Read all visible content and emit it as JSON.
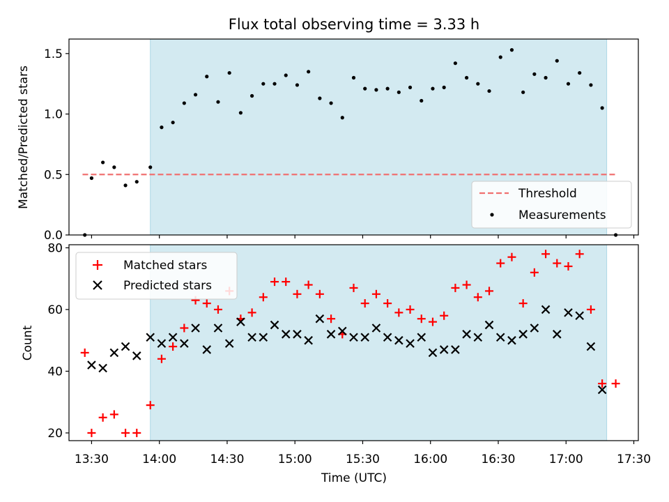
{
  "chart_data": [
    {
      "type": "scatter",
      "title": "Flux total observing time = 3.33 h",
      "xlabel": "",
      "ylabel": "Matched/Predicted stars",
      "ylim": [
        0.0,
        1.62
      ],
      "xlim": [
        "13:20",
        "17:32"
      ],
      "yticks": [
        "0.0",
        "0.5",
        "1.0",
        "1.5"
      ],
      "grid": false,
      "legend_position": "lower right",
      "shaded_interval": {
        "start": "13:56",
        "end": "17:18",
        "color": "#d3eaf1"
      },
      "threshold": {
        "name": "Threshold",
        "value": 0.5,
        "x_start": "13:26",
        "x_end": "17:22",
        "color": "#f07070",
        "style": "dashed"
      },
      "series": [
        {
          "name": "Measurements",
          "color": "#000000",
          "marker": "dot",
          "x": [
            "13:27",
            "13:30",
            "13:35",
            "13:40",
            "13:45",
            "13:50",
            "13:56",
            "14:01",
            "14:06",
            "14:11",
            "14:16",
            "14:21",
            "14:26",
            "14:31",
            "14:36",
            "14:41",
            "14:46",
            "14:51",
            "14:56",
            "15:01",
            "15:06",
            "15:11",
            "15:16",
            "15:21",
            "15:26",
            "15:31",
            "15:36",
            "15:41",
            "15:46",
            "15:51",
            "15:56",
            "16:01",
            "16:06",
            "16:11",
            "16:16",
            "16:21",
            "16:26",
            "16:31",
            "16:36",
            "16:41",
            "16:46",
            "16:51",
            "16:56",
            "17:01",
            "17:06",
            "17:11",
            "17:16",
            "17:22"
          ],
          "y": [
            0.0,
            0.47,
            0.6,
            0.56,
            0.41,
            0.44,
            0.56,
            0.89,
            0.93,
            1.09,
            1.16,
            1.31,
            1.1,
            1.34,
            1.01,
            1.15,
            1.25,
            1.25,
            1.32,
            1.24,
            1.35,
            1.13,
            1.09,
            0.97,
            1.3,
            1.21,
            1.2,
            1.21,
            1.18,
            1.22,
            1.11,
            1.21,
            1.22,
            1.42,
            1.3,
            1.25,
            1.19,
            1.47,
            1.53,
            1.18,
            1.33,
            1.3,
            1.44,
            1.25,
            1.34,
            1.24,
            1.05,
            0.0
          ]
        }
      ]
    },
    {
      "type": "scatter",
      "title": "",
      "xlabel": "Time (UTC)",
      "ylabel": "Count",
      "ylim": [
        17.5,
        81
      ],
      "xlim": [
        "13:20",
        "17:32"
      ],
      "yticks": [
        "20",
        "40",
        "60",
        "80"
      ],
      "xticks": [
        "13:30",
        "14:00",
        "14:30",
        "15:00",
        "15:30",
        "16:00",
        "16:30",
        "17:00",
        "17:30"
      ],
      "grid": false,
      "legend_position": "upper left",
      "shaded_interval": {
        "start": "13:56",
        "end": "17:18",
        "color": "#d3eaf1"
      },
      "series": [
        {
          "name": "Matched stars",
          "color": "#ff0000",
          "marker": "plus",
          "x": [
            "13:27",
            "13:30",
            "13:35",
            "13:40",
            "13:45",
            "13:50",
            "13:56",
            "14:01",
            "14:06",
            "14:11",
            "14:16",
            "14:21",
            "14:26",
            "14:31",
            "14:36",
            "14:41",
            "14:46",
            "14:51",
            "14:56",
            "15:01",
            "15:06",
            "15:11",
            "15:16",
            "15:21",
            "15:26",
            "15:31",
            "15:36",
            "15:41",
            "15:46",
            "15:51",
            "15:56",
            "16:01",
            "16:06",
            "16:11",
            "16:16",
            "16:21",
            "16:26",
            "16:31",
            "16:36",
            "16:41",
            "16:46",
            "16:51",
            "16:56",
            "17:01",
            "17:06",
            "17:11",
            "17:16",
            "17:22"
          ],
          "y": [
            46,
            20,
            25,
            26,
            20,
            20,
            29,
            44,
            48,
            54,
            63,
            62,
            60,
            66,
            57,
            59,
            64,
            69,
            69,
            65,
            68,
            65,
            57,
            52,
            67,
            62,
            65,
            62,
            59,
            60,
            57,
            56,
            58,
            67,
            68,
            64,
            66,
            75,
            77,
            62,
            72,
            78,
            75,
            74,
            78,
            60,
            36,
            36
          ]
        },
        {
          "name": "Predicted stars",
          "color": "#000000",
          "marker": "x",
          "x": [
            "13:30",
            "13:35",
            "13:40",
            "13:45",
            "13:50",
            "13:56",
            "14:01",
            "14:06",
            "14:11",
            "14:16",
            "14:21",
            "14:26",
            "14:31",
            "14:36",
            "14:41",
            "14:46",
            "14:51",
            "14:56",
            "15:01",
            "15:06",
            "15:11",
            "15:16",
            "15:21",
            "15:26",
            "15:31",
            "15:36",
            "15:41",
            "15:46",
            "15:51",
            "15:56",
            "16:01",
            "16:06",
            "16:11",
            "16:16",
            "16:21",
            "16:26",
            "16:31",
            "16:36",
            "16:41",
            "16:46",
            "16:51",
            "16:56",
            "17:01",
            "17:06",
            "17:11",
            "17:16"
          ],
          "y": [
            42,
            41,
            46,
            48,
            45,
            51,
            49,
            51,
            49,
            54,
            47,
            54,
            49,
            56,
            51,
            51,
            55,
            52,
            52,
            50,
            57,
            52,
            53,
            51,
            51,
            54,
            51,
            50,
            49,
            51,
            46,
            47,
            47,
            52,
            51,
            55,
            51,
            50,
            52,
            54,
            60,
            52,
            59,
            58,
            48,
            34
          ]
        }
      ]
    }
  ]
}
